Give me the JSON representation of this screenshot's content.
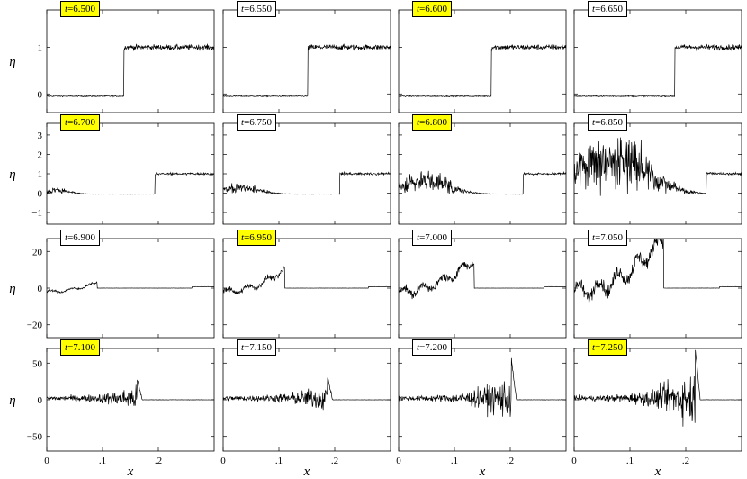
{
  "chart_data": {
    "type": "line",
    "xlabel": "x",
    "ylabel": "η",
    "xlim": [
      0,
      0.3
    ],
    "x_ticks": [
      0,
      0.1,
      0.2
    ],
    "x_tick_labels": [
      "0",
      ".1",
      ".2"
    ],
    "rows": [
      {
        "ylim": [
          -0.4,
          1.8
        ],
        "y_ticks": [
          0,
          1
        ],
        "y_tick_labels": [
          "0",
          "1"
        ]
      },
      {
        "ylim": [
          -1.6,
          3.6
        ],
        "y_ticks": [
          -1,
          0,
          1,
          2,
          3
        ],
        "y_tick_labels": [
          "−1",
          "0",
          "1",
          "2",
          "3"
        ]
      },
      {
        "ylim": [
          -27,
          27
        ],
        "y_ticks": [
          -20,
          0,
          20
        ],
        "y_tick_labels": [
          "−20",
          "0",
          "20"
        ]
      },
      {
        "ylim": [
          -70,
          70
        ],
        "y_ticks": [
          -50,
          0,
          50
        ],
        "y_tick_labels": [
          "−50",
          "0",
          "50"
        ]
      }
    ],
    "panels": [
      {
        "t_label": "6.500",
        "highlight": true,
        "front_x": 0.138,
        "kind": "step"
      },
      {
        "t_label": "6.550",
        "highlight": false,
        "front_x": 0.152,
        "kind": "step"
      },
      {
        "t_label": "6.600",
        "highlight": true,
        "front_x": 0.166,
        "kind": "step"
      },
      {
        "t_label": "6.650",
        "highlight": false,
        "front_x": 0.18,
        "kind": "step"
      },
      {
        "t_label": "6.700",
        "highlight": true,
        "front_x": 0.194,
        "kind": "step",
        "bump_x": 0.015,
        "bump_amp": 0.2
      },
      {
        "t_label": "6.750",
        "highlight": false,
        "front_x": 0.209,
        "kind": "step",
        "bump_x": 0.03,
        "bump_amp": 0.35
      },
      {
        "t_label": "6.800",
        "highlight": true,
        "front_x": 0.223,
        "kind": "step",
        "bump_x": 0.045,
        "bump_amp": 0.7
      },
      {
        "t_label": "6.850",
        "highlight": false,
        "front_x": 0.237,
        "kind": "step",
        "bump_x": 0.07,
        "bump_amp": 1.9
      },
      {
        "t_label": "6.900",
        "highlight": false,
        "peak_x": 0.08,
        "peak": 4,
        "kind": "wave"
      },
      {
        "t_label": "6.950",
        "highlight": true,
        "peak_x": 0.1,
        "peak": 10,
        "kind": "wave"
      },
      {
        "t_label": "7.000",
        "highlight": false,
        "peak_x": 0.125,
        "peak": 15,
        "kind": "wave"
      },
      {
        "t_label": "7.050",
        "highlight": false,
        "peak_x": 0.15,
        "peak": 26,
        "kind": "wave"
      },
      {
        "t_label": "7.100",
        "highlight": true,
        "peak_x": 0.165,
        "peak": 28,
        "kind": "spike"
      },
      {
        "t_label": "7.150",
        "highlight": false,
        "peak_x": 0.19,
        "peak": 32,
        "kind": "spike"
      },
      {
        "t_label": "7.200",
        "highlight": false,
        "peak_x": 0.205,
        "peak": 55,
        "kind": "spike"
      },
      {
        "t_label": "7.250",
        "highlight": true,
        "peak_x": 0.22,
        "peak": 70,
        "kind": "spike"
      }
    ]
  }
}
